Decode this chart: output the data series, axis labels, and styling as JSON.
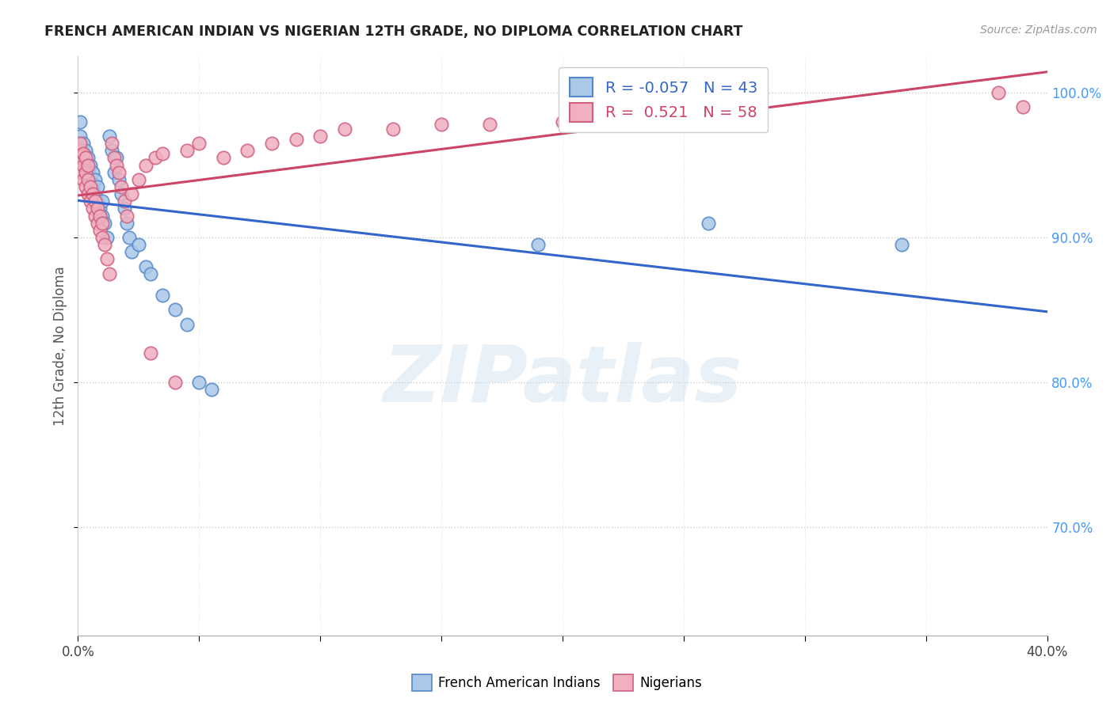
{
  "title": "FRENCH AMERICAN INDIAN VS NIGERIAN 12TH GRADE, NO DIPLOMA CORRELATION CHART",
  "source": "Source: ZipAtlas.com",
  "ylabel": "12th Grade, No Diploma",
  "x_min": 0.0,
  "x_max": 0.4,
  "y_min": 0.625,
  "y_max": 1.025,
  "y_ticks": [
    0.7,
    0.8,
    0.9,
    1.0
  ],
  "y_tick_labels": [
    "70.0%",
    "80.0%",
    "90.0%",
    "100.0%"
  ],
  "x_ticks": [
    0.0,
    0.05,
    0.1,
    0.15,
    0.2,
    0.25,
    0.3,
    0.35,
    0.4
  ],
  "blue_R": -0.057,
  "blue_N": 43,
  "pink_R": 0.521,
  "pink_N": 58,
  "blue_scatter_color": "#aac8e8",
  "blue_edge_color": "#5588cc",
  "pink_scatter_color": "#f0b0c0",
  "pink_edge_color": "#d06080",
  "blue_line_color": "#3366cc",
  "pink_line_color": "#cc4466",
  "blue_scatter_x": [
    0.001,
    0.001,
    0.001,
    0.002,
    0.002,
    0.003,
    0.003,
    0.004,
    0.004,
    0.005,
    0.005,
    0.006,
    0.006,
    0.007,
    0.007,
    0.008,
    0.008,
    0.009,
    0.01,
    0.01,
    0.011,
    0.012,
    0.013,
    0.014,
    0.015,
    0.016,
    0.017,
    0.018,
    0.019,
    0.02,
    0.021,
    0.022,
    0.025,
    0.028,
    0.03,
    0.035,
    0.04,
    0.045,
    0.05,
    0.055,
    0.19,
    0.26,
    0.34
  ],
  "blue_scatter_y": [
    0.96,
    0.97,
    0.98,
    0.958,
    0.965,
    0.95,
    0.96,
    0.945,
    0.955,
    0.94,
    0.95,
    0.935,
    0.945,
    0.93,
    0.94,
    0.925,
    0.935,
    0.92,
    0.915,
    0.925,
    0.91,
    0.9,
    0.97,
    0.96,
    0.945,
    0.955,
    0.94,
    0.93,
    0.92,
    0.91,
    0.9,
    0.89,
    0.895,
    0.88,
    0.875,
    0.86,
    0.85,
    0.84,
    0.8,
    0.795,
    0.895,
    0.91,
    0.895
  ],
  "pink_scatter_x": [
    0.001,
    0.001,
    0.001,
    0.001,
    0.002,
    0.002,
    0.002,
    0.003,
    0.003,
    0.003,
    0.004,
    0.004,
    0.004,
    0.005,
    0.005,
    0.006,
    0.006,
    0.007,
    0.007,
    0.008,
    0.008,
    0.009,
    0.009,
    0.01,
    0.01,
    0.011,
    0.012,
    0.013,
    0.014,
    0.015,
    0.016,
    0.017,
    0.018,
    0.019,
    0.02,
    0.022,
    0.025,
    0.028,
    0.03,
    0.032,
    0.035,
    0.04,
    0.045,
    0.05,
    0.06,
    0.07,
    0.08,
    0.09,
    0.1,
    0.11,
    0.13,
    0.15,
    0.17,
    0.2,
    0.23,
    0.28,
    0.38,
    0.39
  ],
  "pink_scatter_y": [
    0.945,
    0.955,
    0.96,
    0.965,
    0.94,
    0.95,
    0.958,
    0.935,
    0.945,
    0.955,
    0.93,
    0.94,
    0.95,
    0.925,
    0.935,
    0.92,
    0.93,
    0.915,
    0.925,
    0.91,
    0.92,
    0.905,
    0.915,
    0.9,
    0.91,
    0.895,
    0.885,
    0.875,
    0.965,
    0.955,
    0.95,
    0.945,
    0.935,
    0.925,
    0.915,
    0.93,
    0.94,
    0.95,
    0.82,
    0.955,
    0.958,
    0.8,
    0.96,
    0.965,
    0.955,
    0.96,
    0.965,
    0.968,
    0.97,
    0.975,
    0.975,
    0.978,
    0.978,
    0.98,
    0.982,
    0.988,
    1.0,
    0.99
  ],
  "legend_blue_label": "R = -0.057   N = 43",
  "legend_pink_label": "R =  0.521   N = 58",
  "bottom_legend_blue": "French American Indians",
  "bottom_legend_pink": "Nigerians",
  "watermark_text": "ZIPatlas"
}
